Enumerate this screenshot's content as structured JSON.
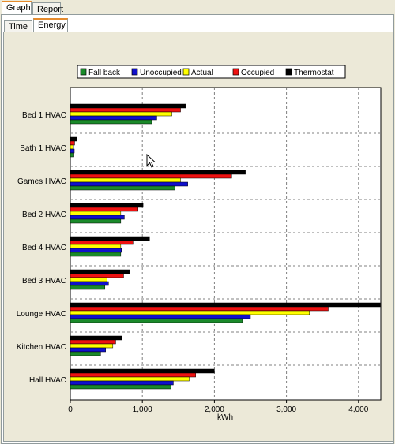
{
  "tabs_outer": [
    {
      "label": "Graph",
      "active": true
    },
    {
      "label": "Report",
      "active": false
    }
  ],
  "tabs_inner": [
    {
      "label": "Time",
      "active": false
    },
    {
      "label": "Energy",
      "active": true
    }
  ],
  "chart_data": {
    "type": "bar",
    "orientation": "horizontal",
    "categories": [
      "Bed 1 HVAC",
      "Bath 1 HVAC",
      "Games HVAC",
      "Bed 2 HVAC",
      "Bed 4 HVAC",
      "Bed 3 HVAC",
      "Lounge HVAC",
      "Kitchen HVAC",
      "Hall HVAC"
    ],
    "series": [
      {
        "name": "Thermostat",
        "color": "#000000",
        "values": [
          1600,
          90,
          2430,
          1010,
          1100,
          820,
          4320,
          720,
          2000
        ]
      },
      {
        "name": "Occupied",
        "color": "#ee1111",
        "values": [
          1530,
          60,
          2240,
          940,
          870,
          740,
          3580,
          630,
          1740
        ]
      },
      {
        "name": "Actual",
        "color": "#ffff00",
        "values": [
          1410,
          45,
          1530,
          700,
          700,
          510,
          3320,
          590,
          1650
        ]
      },
      {
        "name": "Unoccupied",
        "color": "#1010cc",
        "values": [
          1200,
          55,
          1630,
          750,
          710,
          530,
          2500,
          490,
          1430
        ]
      },
      {
        "name": "Fall back",
        "color": "#1a8a2a",
        "values": [
          1130,
          50,
          1450,
          700,
          700,
          480,
          2390,
          420,
          1400
        ]
      }
    ],
    "legend_order": [
      "Fall back",
      "Unoccupied",
      "Actual",
      "Occupied",
      "Thermostat"
    ],
    "legend_position": "top",
    "xlabel": "kWh",
    "xticks": [
      "0",
      "1,000",
      "2,000",
      "3,000",
      "4,000"
    ],
    "xlim": [
      0,
      4300
    ],
    "grid": true
  }
}
